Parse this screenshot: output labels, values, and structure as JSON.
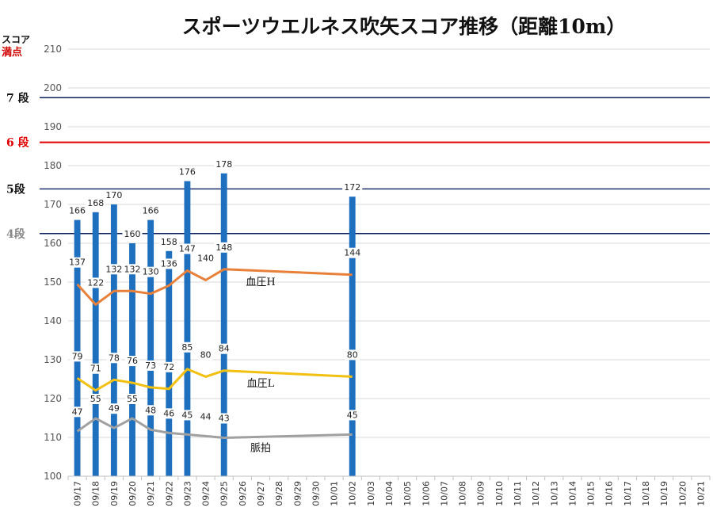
{
  "chart_data": {
    "type": "bar",
    "title": "スポーツウエルネス吹矢スコア推移（距離10m）",
    "ylabel": "スコア",
    "ylabel_note": "満点",
    "ylim": [
      100,
      210
    ],
    "yticks": [
      100,
      110,
      120,
      130,
      140,
      150,
      160,
      170,
      180,
      190,
      200,
      210
    ],
    "grid": true,
    "categories": [
      "09/17",
      "09/18",
      "09/19",
      "09/20",
      "09/21",
      "09/22",
      "09/23",
      "09/24",
      "09/25",
      "09/26",
      "09/27",
      "09/28",
      "09/29",
      "09/30",
      "10/01",
      "10/02",
      "10/03",
      "10/04",
      "10/05",
      "10/06",
      "10/07",
      "10/08",
      "10/09",
      "10/10",
      "10/11",
      "10/12",
      "10/13",
      "10/14",
      "10/15",
      "10/16",
      "10/17",
      "10/18",
      "10/19",
      "10/20",
      "10/21"
    ],
    "series": [
      {
        "kind": "bar",
        "color": "#1f6fbf",
        "values": [
          166,
          168,
          170,
          160,
          166,
          158,
          176,
          null,
          178,
          null,
          null,
          null,
          null,
          null,
          null,
          172,
          null,
          null,
          null,
          null,
          null,
          null,
          null,
          null,
          null,
          null,
          null,
          null,
          null,
          null,
          null,
          null,
          null,
          null,
          null
        ]
      },
      {
        "name": "血圧H",
        "kind": "line",
        "color": "#e8803a",
        "values": [
          137,
          122,
          132,
          132,
          130,
          136,
          147,
          140,
          148,
          null,
          null,
          null,
          null,
          null,
          null,
          144,
          null,
          null,
          null,
          null,
          null,
          null,
          null,
          null,
          null,
          null,
          null,
          null,
          null,
          null,
          null,
          null,
          null,
          null,
          null
        ]
      },
      {
        "name": "血圧L",
        "kind": "line",
        "color": "#f2c010",
        "values": [
          79,
          71,
          78,
          76,
          73,
          72,
          85,
          80,
          84,
          null,
          null,
          null,
          null,
          null,
          null,
          80,
          null,
          null,
          null,
          null,
          null,
          null,
          null,
          null,
          null,
          null,
          null,
          null,
          null,
          null,
          null,
          null,
          null,
          null,
          null
        ]
      },
      {
        "name": "脈拍",
        "kind": "line",
        "color": "#a0a0a0",
        "values": [
          47,
          55,
          49,
          55,
          48,
          46,
          45,
          44,
          43,
          null,
          null,
          null,
          null,
          null,
          null,
          45,
          null,
          null,
          null,
          null,
          null,
          null,
          null,
          null,
          null,
          null,
          null,
          null,
          null,
          null,
          null,
          null,
          null,
          null,
          null
        ]
      }
    ],
    "reference_lines": [
      {
        "label": "7 段",
        "value": 197.5,
        "color": "#0b1f5c",
        "label_color": "#111111"
      },
      {
        "label": "6 段",
        "value": 186,
        "color": "#e00000",
        "label_color": "#e00000"
      },
      {
        "label": "5段",
        "value": 174,
        "color": "#0b1f5c",
        "label_color": "#111111"
      },
      {
        "label": "4段",
        "value": 162.5,
        "color": "#0b1f5c",
        "label_color": "#888888"
      }
    ]
  }
}
